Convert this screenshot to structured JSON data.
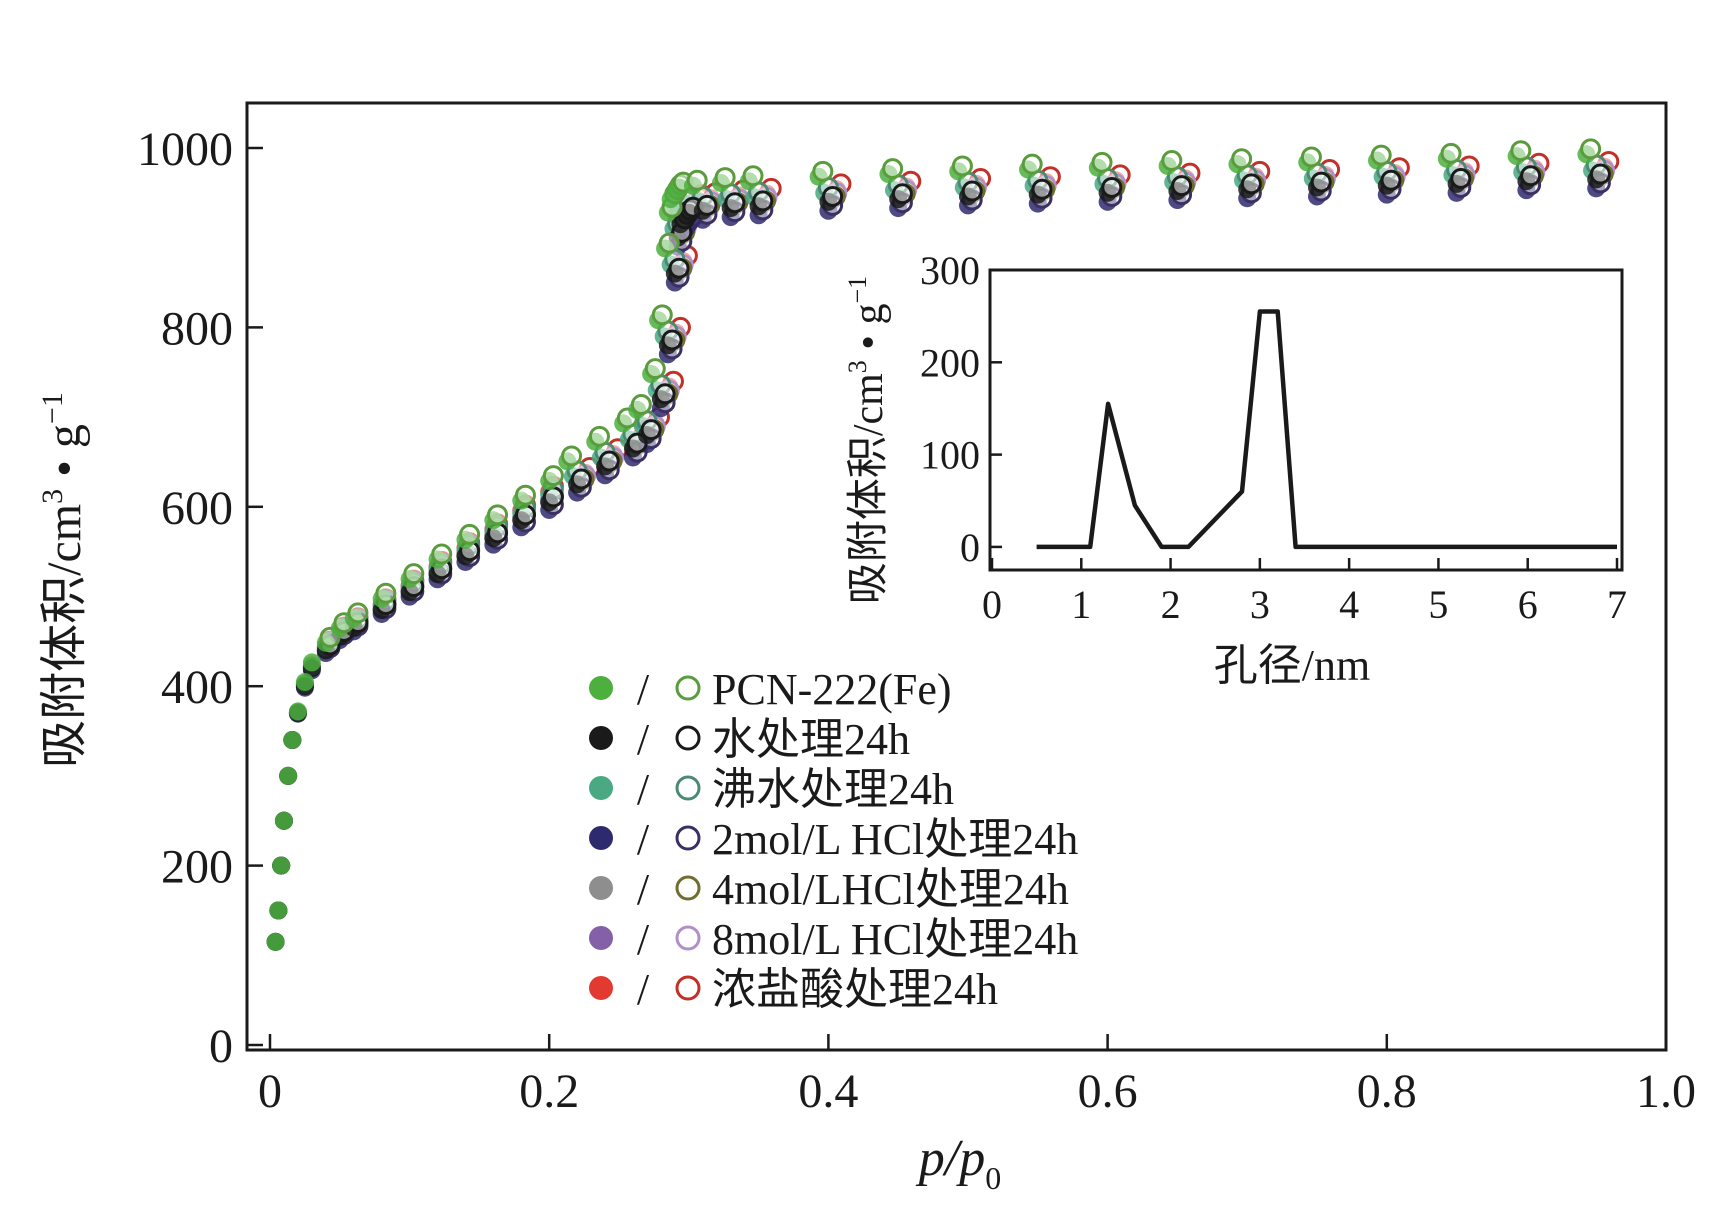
{
  "chart_data": [
    {
      "type": "scatter",
      "name": "main",
      "xlabel": "p/p",
      "xlabel_sub": "0",
      "ylabel": "吸附体积/cm",
      "ylabel_sup": "3",
      "ylabel_tail": " • g",
      "ylabel_exp": "−1",
      "xlim": [
        0,
        1.0
      ],
      "ylim": [
        0,
        1000
      ],
      "xticks": [
        0,
        0.2,
        0.4,
        0.6,
        0.8,
        1.0
      ],
      "xtick_labels": [
        "0",
        "0.2",
        "0.4",
        "0.6",
        "0.8",
        "1.0"
      ],
      "yticks": [
        0,
        200,
        400,
        600,
        800,
        1000
      ],
      "ytick_labels": [
        "0",
        "200",
        "400",
        "600",
        "800",
        "1000"
      ],
      "legend_separator": "/",
      "legend_position": "center",
      "series": [
        {
          "name": "PCN-222(Fe)",
          "fill": "#4caf3e",
          "stroke": "#5a9b3c",
          "offset": 28,
          "shift": -0.007
        },
        {
          "name": "水处理24h",
          "fill": "#1a1a1a",
          "stroke": "#1a1a1a",
          "offset": 0,
          "shift": 0
        },
        {
          "name": "沸水处理24h",
          "fill": "#4aa882",
          "stroke": "#4a8a72",
          "offset": 10,
          "shift": -0.003
        },
        {
          "name": "2mol/L HCl处理24h",
          "fill": "#2e2a6e",
          "stroke": "#3b2f63",
          "offset": -10,
          "shift": 0
        },
        {
          "name": "4mol/LHCl处理24h",
          "fill": "#8e8e8e",
          "stroke": "#6e6e2e",
          "offset": 0,
          "shift": 0.002
        },
        {
          "name": "8mol/L HCl处理24h",
          "fill": "#8460a8",
          "stroke": "#b090c8",
          "offset": 4,
          "shift": 0.003
        },
        {
          "name": "浓盐酸处理24h",
          "fill": "#e23a30",
          "stroke": "#c23028",
          "offset": 14,
          "shift": 0.006
        }
      ],
      "isotherm_base": {
        "x": [
          0.004,
          0.006,
          0.008,
          0.01,
          0.013,
          0.016,
          0.02,
          0.025,
          0.03,
          0.04,
          0.05,
          0.06,
          0.08,
          0.1,
          0.12,
          0.14,
          0.16,
          0.18,
          0.2,
          0.22,
          0.24,
          0.26,
          0.27,
          0.28,
          0.285,
          0.29,
          0.292,
          0.294,
          0.296,
          0.298,
          0.3,
          0.31,
          0.33,
          0.35,
          0.4,
          0.45,
          0.5,
          0.55,
          0.6,
          0.65,
          0.7,
          0.75,
          0.8,
          0.85,
          0.9,
          0.95
        ],
        "y": [
          115,
          150,
          200,
          250,
          300,
          340,
          370,
          400,
          420,
          440,
          455,
          465,
          485,
          505,
          525,
          545,
          565,
          585,
          605,
          625,
          645,
          665,
          680,
          720,
          780,
          860,
          900,
          915,
          920,
          925,
          928,
          930,
          933,
          935,
          940,
          943,
          946,
          948,
          950,
          952,
          954,
          956,
          958,
          960,
          963,
          965
        ]
      }
    },
    {
      "type": "line",
      "name": "inset",
      "xlabel": "孔径/nm",
      "ylabel": "吸附体积/cm",
      "ylabel_sup": "3",
      "ylabel_tail": " • g",
      "ylabel_exp": "−1",
      "xlim": [
        0,
        7
      ],
      "ylim": [
        -25,
        300
      ],
      "xticks": [
        0,
        1,
        2,
        3,
        4,
        5,
        6,
        7
      ],
      "xtick_labels": [
        "0",
        "1",
        "2",
        "3",
        "4",
        "5",
        "6",
        "7"
      ],
      "yticks": [
        0,
        100,
        200,
        300
      ],
      "ytick_labels": [
        "0",
        "100",
        "200",
        "300"
      ],
      "x": [
        0.5,
        1.1,
        1.3,
        1.6,
        1.9,
        2.2,
        2.8,
        3.0,
        3.2,
        3.4,
        7.0
      ],
      "y": [
        0,
        0,
        155,
        45,
        0,
        0,
        60,
        255,
        255,
        0,
        0
      ]
    }
  ]
}
